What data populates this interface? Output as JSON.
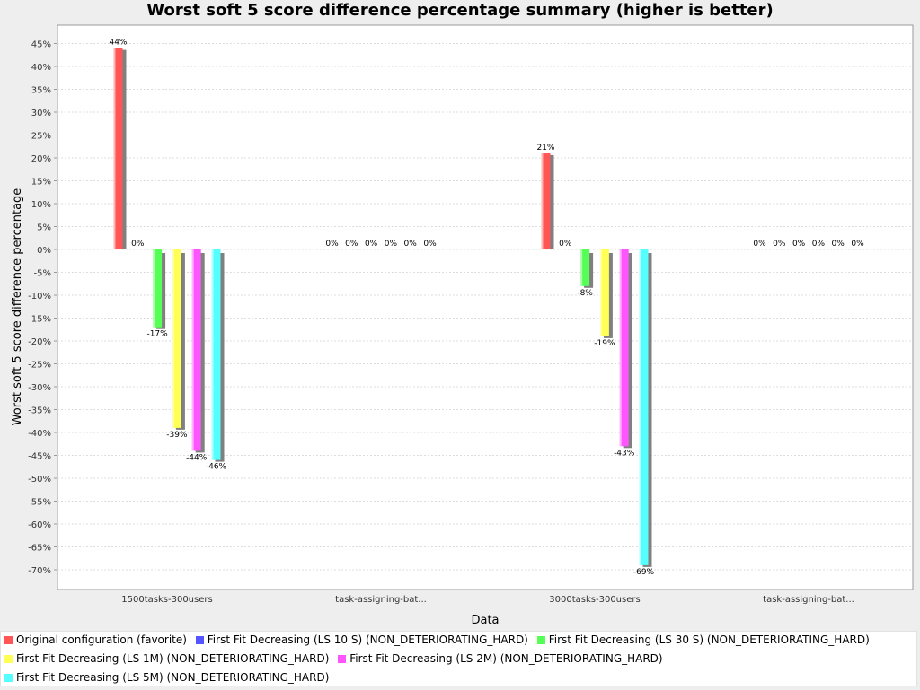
{
  "title": "Worst soft 5 score difference percentage summary (higher is better)",
  "chart_data": {
    "type": "bar",
    "title": "Worst soft 5 score difference percentage summary (higher is better)",
    "xlabel": "Data",
    "ylabel": "Worst soft 5 score difference percentage",
    "ylim": [
      -74,
      48
    ],
    "yticks": [
      45,
      40,
      35,
      30,
      25,
      20,
      15,
      10,
      5,
      0,
      -5,
      -10,
      -15,
      -20,
      -25,
      -30,
      -35,
      -40,
      -45,
      -50,
      -55,
      -60,
      -65,
      -70
    ],
    "tick_suffix": "%",
    "grid": true,
    "legend_position": "bottom",
    "categories": [
      "1500tasks-300users",
      "task-assigning-bat...",
      "3000tasks-300users",
      "task-assigning-bat..."
    ],
    "series": [
      {
        "name": "Original configuration (favorite)",
        "color": "#ff5555",
        "values": [
          44,
          0,
          21,
          0
        ],
        "labels": [
          "44%",
          "0%",
          "21%",
          "0%"
        ]
      },
      {
        "name": "First Fit Decreasing (LS 10 S) (NON_DETERIORATING_HARD)",
        "color": "#5555ff",
        "values": [
          0,
          0,
          0,
          0
        ],
        "labels": [
          "0%",
          "0%",
          "0%",
          "0%"
        ]
      },
      {
        "name": "First Fit Decreasing (LS 30 S) (NON_DETERIORATING_HARD)",
        "color": "#55ff55",
        "values": [
          -17,
          0,
          -8,
          0
        ],
        "labels": [
          "-17%",
          "0%",
          "-8%",
          "0%"
        ]
      },
      {
        "name": "First Fit Decreasing (LS 1M) (NON_DETERIORATING_HARD)",
        "color": "#ffff55",
        "values": [
          -39,
          0,
          -19,
          0
        ],
        "labels": [
          "-39%",
          "0%",
          "-19%",
          "0%"
        ]
      },
      {
        "name": "First Fit Decreasing (LS 2M) (NON_DETERIORATING_HARD)",
        "color": "#ff55ff",
        "values": [
          -44,
          0,
          -43,
          0
        ],
        "labels": [
          "-44%",
          "0%",
          "-43%",
          "0%"
        ]
      },
      {
        "name": "First Fit Decreasing (LS 5M) (NON_DETERIORATING_HARD)",
        "color": "#55ffff",
        "values": [
          -46,
          0,
          -69,
          0
        ],
        "labels": [
          "-46%",
          "0%",
          "-69%",
          "0%"
        ]
      }
    ]
  }
}
